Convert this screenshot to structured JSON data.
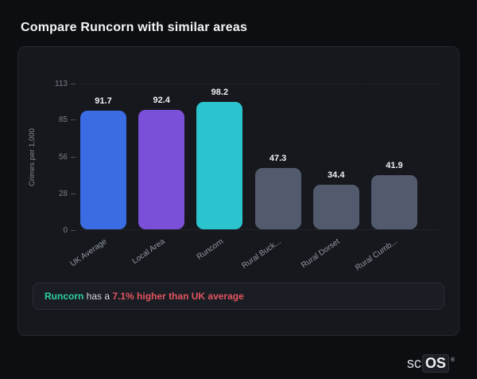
{
  "page": {
    "title": "Compare Runcorn with similar areas"
  },
  "chart_data": {
    "type": "bar",
    "title": "",
    "xlabel": "",
    "ylabel": "Crimes per 1,000",
    "categories": [
      "UK Average",
      "Local Area",
      "Runcorn",
      "Rural Buck...",
      "Rural Dorset",
      "Rural Cumb..."
    ],
    "values": [
      91.7,
      92.4,
      98.2,
      47.3,
      34.4,
      41.9
    ],
    "bar_colors": [
      "#3a6de4",
      "#7b50d8",
      "#2bc3cd",
      "#525b6e",
      "#525b6e",
      "#525b6e"
    ],
    "yticks": [
      0,
      28,
      56,
      85,
      113
    ],
    "ylim": [
      0,
      113
    ],
    "grid": false,
    "legend": false
  },
  "note": {
    "highlight": "Runcorn",
    "middle": " has a ",
    "stat": "7.1% higher than UK average",
    "highlight_color": "#2fd0a3",
    "stat_color": "#e25561"
  },
  "logo": {
    "text_left": "sc",
    "text_right": "OS",
    "registered": "®"
  }
}
